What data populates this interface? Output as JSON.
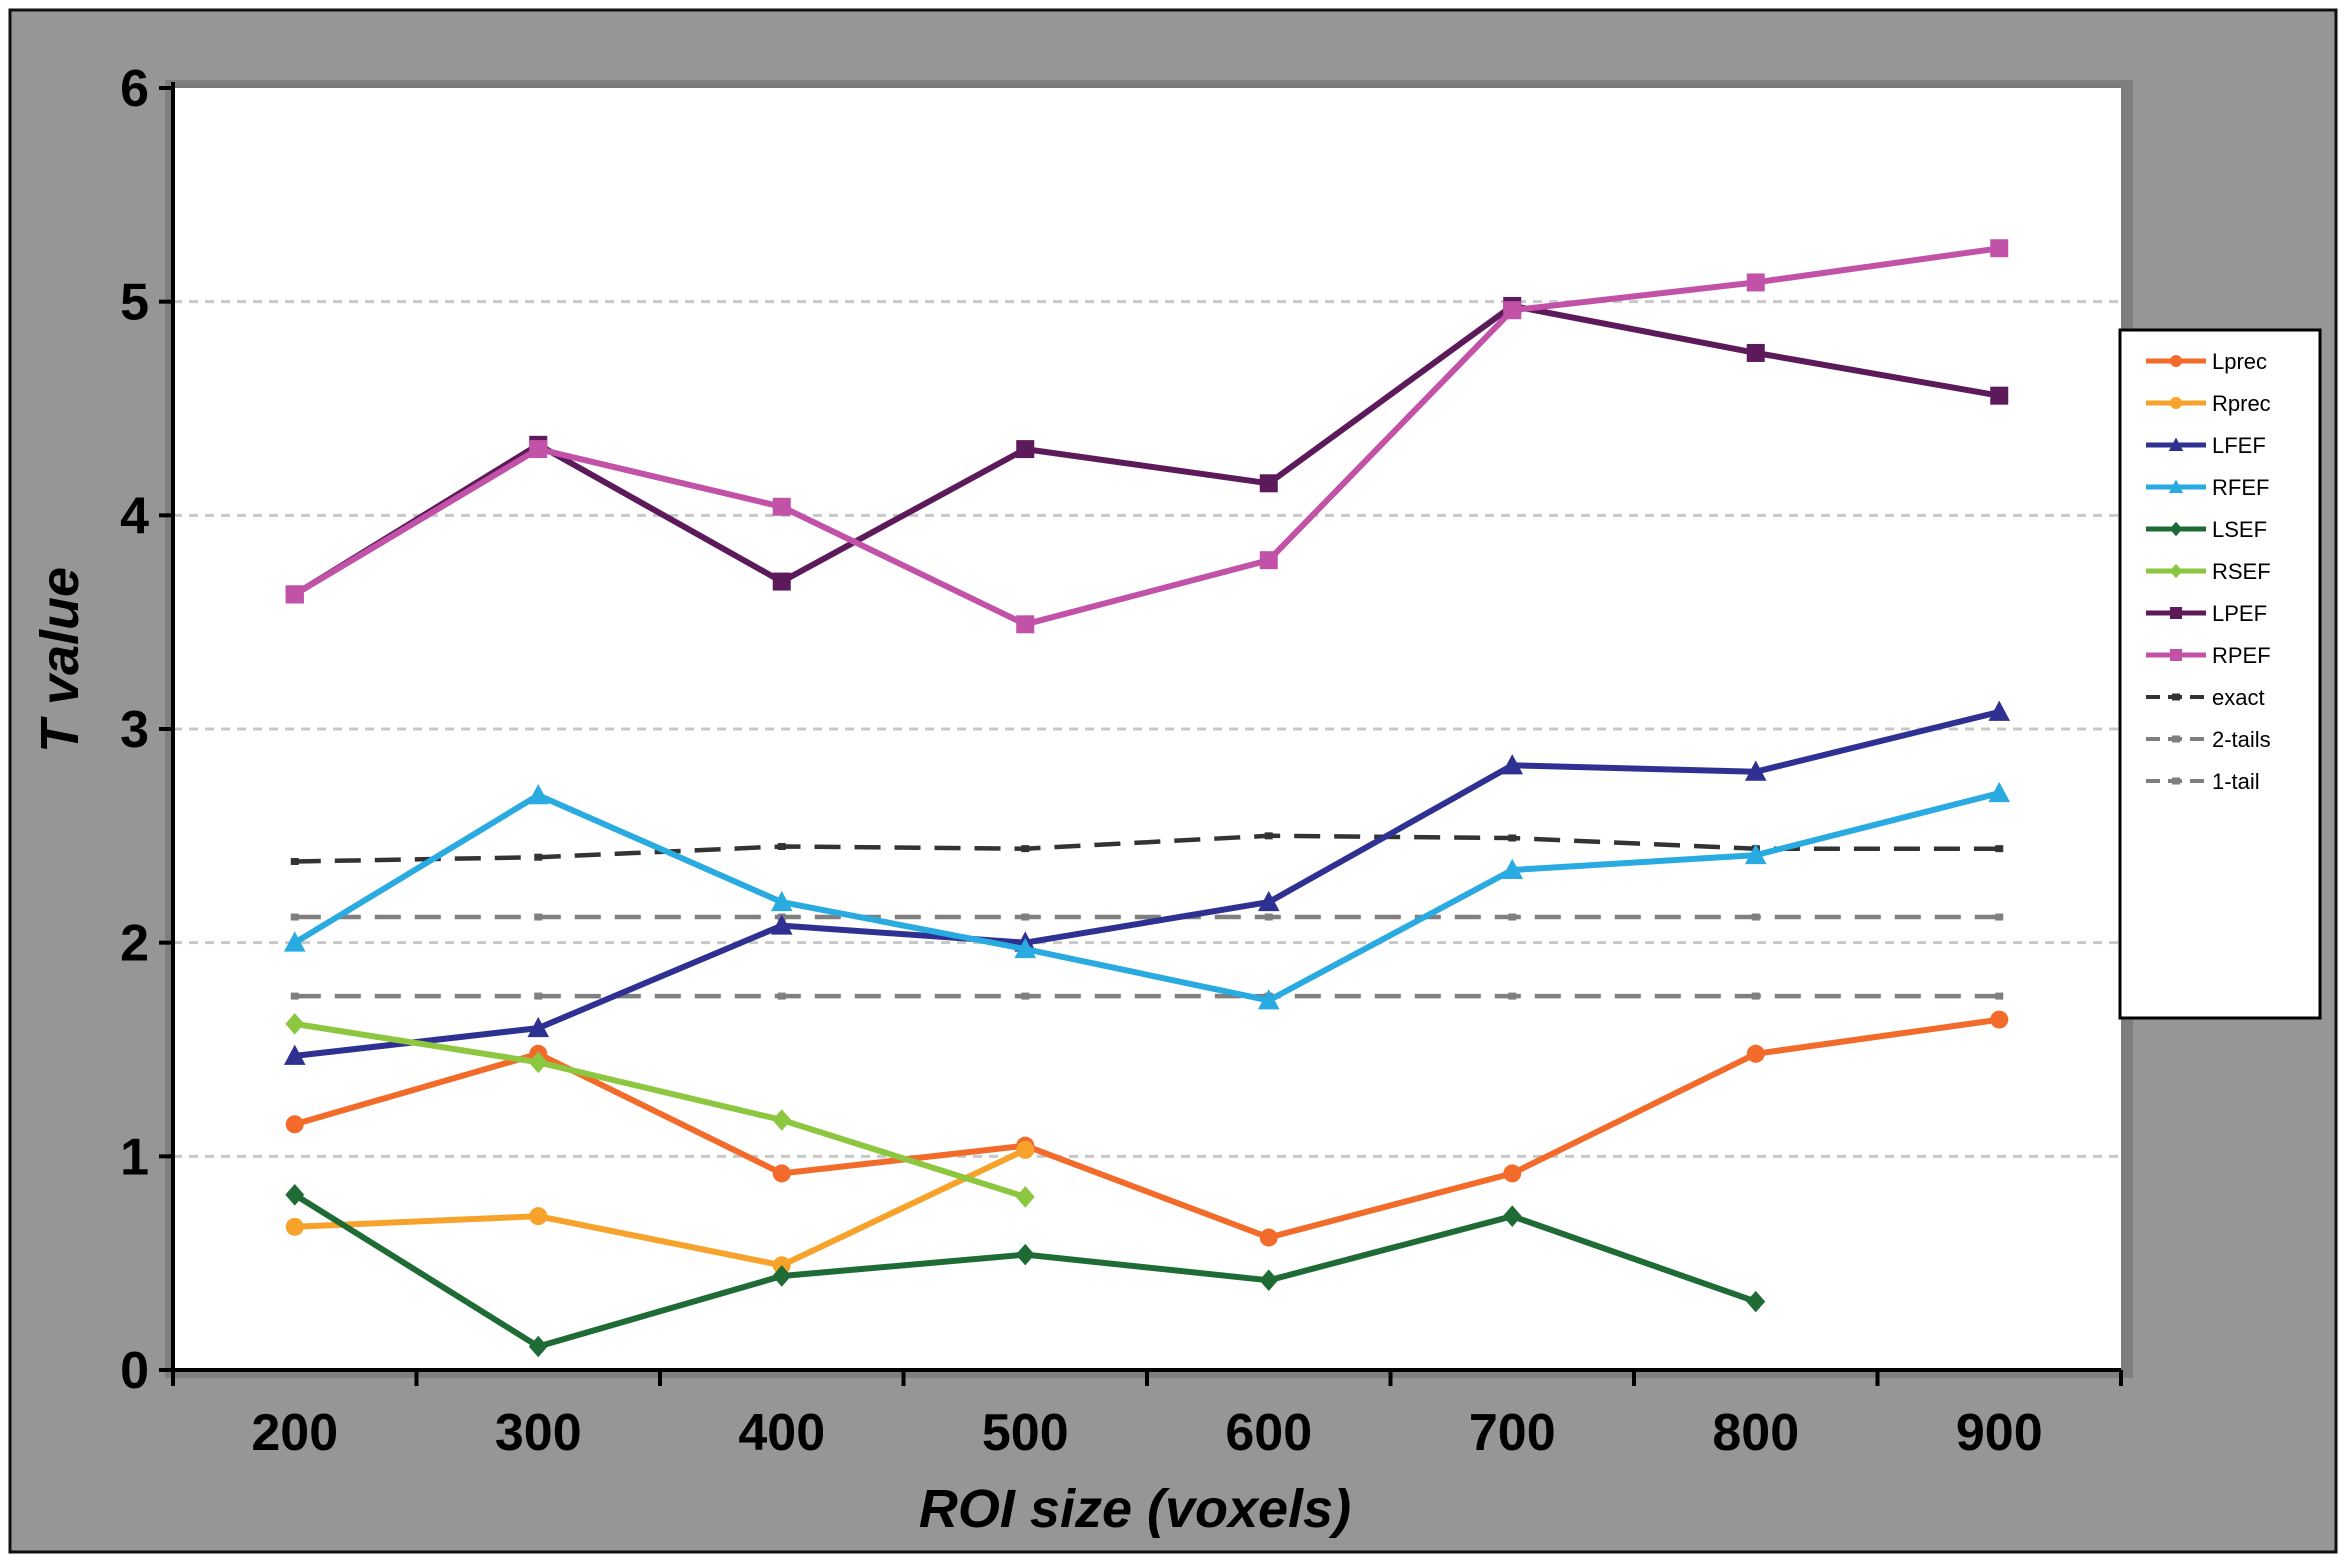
{
  "chart_data": {
    "type": "line",
    "xlabel": "ROI size (voxels)",
    "ylabel": "T value",
    "x": [
      200,
      300,
      400,
      500,
      600,
      700,
      800,
      900
    ],
    "xlim": [
      150,
      950
    ],
    "ylim": [
      0,
      6
    ],
    "yticks": [
      0,
      1,
      2,
      3,
      4,
      5,
      6
    ],
    "xticks": [
      200,
      300,
      400,
      500,
      600,
      700,
      800,
      900
    ],
    "grid": "horizontal dashed",
    "legend_position": "right",
    "series": [
      {
        "name": "Lprec",
        "color": "#f26b2a",
        "marker": "circle",
        "dash": false,
        "values": [
          1.15,
          1.48,
          0.92,
          1.05,
          0.62,
          0.92,
          1.48,
          1.64
        ]
      },
      {
        "name": "Rprec",
        "color": "#f6a22b",
        "marker": "circle",
        "dash": false,
        "values": [
          0.67,
          0.72,
          0.49,
          1.03,
          null,
          null,
          null,
          null
        ]
      },
      {
        "name": "LFEF",
        "color": "#2e3192",
        "marker": "triangle",
        "dash": false,
        "values": [
          1.47,
          1.6,
          2.08,
          2.0,
          2.19,
          2.83,
          2.8,
          3.08
        ]
      },
      {
        "name": "RFEF",
        "color": "#29aae1",
        "marker": "triangle",
        "dash": false,
        "values": [
          2.0,
          2.69,
          2.19,
          1.97,
          1.73,
          2.34,
          2.41,
          2.7
        ]
      },
      {
        "name": "LSEF",
        "color": "#1e6b35",
        "marker": "diamond",
        "dash": false,
        "values": [
          0.82,
          0.11,
          0.44,
          0.54,
          0.42,
          0.72,
          0.32,
          null
        ]
      },
      {
        "name": "RSEF",
        "color": "#8dc63f",
        "marker": "diamond",
        "dash": false,
        "values": [
          1.62,
          1.44,
          1.17,
          0.81,
          null,
          null,
          null,
          null
        ]
      },
      {
        "name": "LPEF",
        "color": "#5c1a5a",
        "marker": "square",
        "dash": false,
        "values": [
          3.63,
          4.33,
          3.69,
          4.31,
          4.15,
          4.98,
          4.76,
          4.56
        ]
      },
      {
        "name": "RPEF",
        "color": "#c152a8",
        "marker": "square",
        "dash": false,
        "values": [
          3.63,
          4.31,
          4.04,
          3.49,
          3.79,
          4.96,
          5.09,
          5.25
        ]
      },
      {
        "name": "exact",
        "color": "#333333",
        "marker": "dash",
        "dash": true,
        "values": [
          2.38,
          2.4,
          2.45,
          2.44,
          2.5,
          2.49,
          2.44,
          2.44
        ]
      },
      {
        "name": "2-tails",
        "color": "#7f7f7f",
        "marker": "dash",
        "dash": true,
        "values": [
          2.12,
          2.12,
          2.12,
          2.12,
          2.12,
          2.12,
          2.12,
          2.12
        ]
      },
      {
        "name": "1-tail",
        "color": "#7f7f7f",
        "marker": "dash",
        "dash": true,
        "values": [
          1.75,
          1.75,
          1.75,
          1.75,
          1.75,
          1.75,
          1.75,
          1.75
        ]
      }
    ]
  }
}
